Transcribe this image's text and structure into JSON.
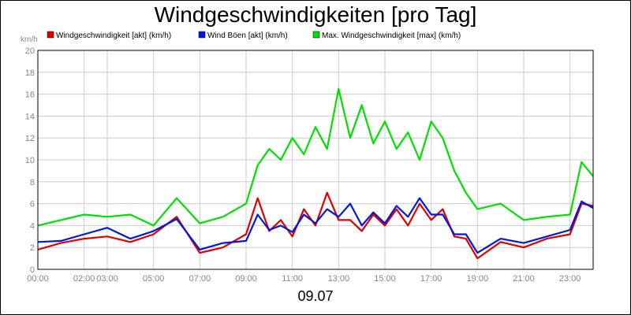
{
  "chart_data": {
    "type": "line",
    "title": "Windgeschwindigkeiten [pro Tag]",
    "unit_label": "km/h",
    "date_label": "09.07",
    "grid": true,
    "legend_position": "top",
    "ylim": [
      0,
      20
    ],
    "y_ticks": [
      "0",
      "2",
      "4",
      "6",
      "8",
      "10",
      "12",
      "14",
      "16",
      "18",
      "20"
    ],
    "xlim": [
      "00:00",
      "24:00"
    ],
    "x_ticks": [
      "00:00",
      "02:00",
      "03:00",
      "05:00",
      "07:00",
      "09:00",
      "11:00",
      "13:00",
      "15:00",
      "17:00",
      "19:00",
      "21:00",
      "23:00"
    ],
    "x_ticks_hours": [
      0,
      2,
      3,
      5,
      7,
      9,
      11,
      13,
      15,
      17,
      19,
      21,
      23
    ],
    "series": [
      {
        "name": "Windgeschwindigkeit [akt] (km/h)",
        "color": "#e00000",
        "x": [
          "00:00",
          "01:00",
          "02:00",
          "03:00",
          "04:00",
          "05:00",
          "06:00",
          "07:00",
          "08:00",
          "09:00",
          "09:30",
          "10:00",
          "10:30",
          "11:00",
          "11:30",
          "12:00",
          "12:30",
          "13:00",
          "13:30",
          "14:00",
          "14:30",
          "15:00",
          "15:30",
          "16:00",
          "16:30",
          "17:00",
          "17:30",
          "18:00",
          "18:30",
          "19:00",
          "20:00",
          "21:00",
          "22:00",
          "23:00",
          "23:30",
          "24:00"
        ],
        "values": [
          1.8,
          2.4,
          2.8,
          3.0,
          2.5,
          3.2,
          4.8,
          1.5,
          2.0,
          3.2,
          6.5,
          3.5,
          4.5,
          3.0,
          5.5,
          4.0,
          7.0,
          4.5,
          4.5,
          3.5,
          5.0,
          4.0,
          5.5,
          4.0,
          6.0,
          4.5,
          5.5,
          3.0,
          2.8,
          1.0,
          2.5,
          2.0,
          2.8,
          3.2,
          6.0,
          5.8
        ]
      },
      {
        "name": "Wind Böen [akt] (km/h)",
        "color": "#0018e0",
        "x": [
          "00:00",
          "01:00",
          "02:00",
          "03:00",
          "04:00",
          "05:00",
          "06:00",
          "07:00",
          "08:00",
          "09:00",
          "09:30",
          "10:00",
          "10:30",
          "11:00",
          "11:30",
          "12:00",
          "12:30",
          "13:00",
          "13:30",
          "14:00",
          "14:30",
          "15:00",
          "15:30",
          "16:00",
          "16:30",
          "17:00",
          "17:30",
          "18:00",
          "18:30",
          "19:00",
          "20:00",
          "21:00",
          "22:00",
          "23:00",
          "23:30",
          "24:00"
        ],
        "values": [
          2.5,
          2.6,
          3.2,
          3.8,
          2.8,
          3.5,
          4.6,
          1.8,
          2.4,
          2.6,
          5.0,
          3.6,
          4.0,
          3.4,
          5.0,
          4.2,
          5.5,
          4.8,
          6.0,
          4.0,
          5.2,
          4.2,
          5.8,
          4.8,
          6.5,
          5.0,
          5.0,
          3.2,
          3.2,
          1.5,
          2.8,
          2.4,
          3.0,
          3.6,
          6.2,
          5.6
        ]
      },
      {
        "name": "Max. Windgeschwindigkeit [max] (km/h)",
        "color": "#00e000",
        "x": [
          "00:00",
          "01:00",
          "02:00",
          "03:00",
          "04:00",
          "05:00",
          "06:00",
          "07:00",
          "08:00",
          "09:00",
          "09:30",
          "10:00",
          "10:30",
          "11:00",
          "11:30",
          "12:00",
          "12:30",
          "13:00",
          "13:30",
          "14:00",
          "14:30",
          "15:00",
          "15:30",
          "16:00",
          "16:30",
          "17:00",
          "17:30",
          "18:00",
          "18:30",
          "19:00",
          "20:00",
          "21:00",
          "22:00",
          "23:00",
          "23:30",
          "24:00"
        ],
        "values": [
          4.0,
          4.5,
          5.0,
          4.8,
          5.0,
          4.0,
          6.5,
          4.2,
          4.8,
          6.0,
          9.5,
          11.0,
          10.0,
          12.0,
          10.5,
          13.0,
          11.0,
          16.5,
          12.0,
          15.0,
          11.5,
          13.5,
          11.0,
          12.5,
          10.0,
          13.5,
          12.0,
          9.0,
          7.0,
          5.5,
          6.0,
          4.5,
          4.8,
          5.0,
          9.8,
          8.5
        ]
      }
    ]
  }
}
